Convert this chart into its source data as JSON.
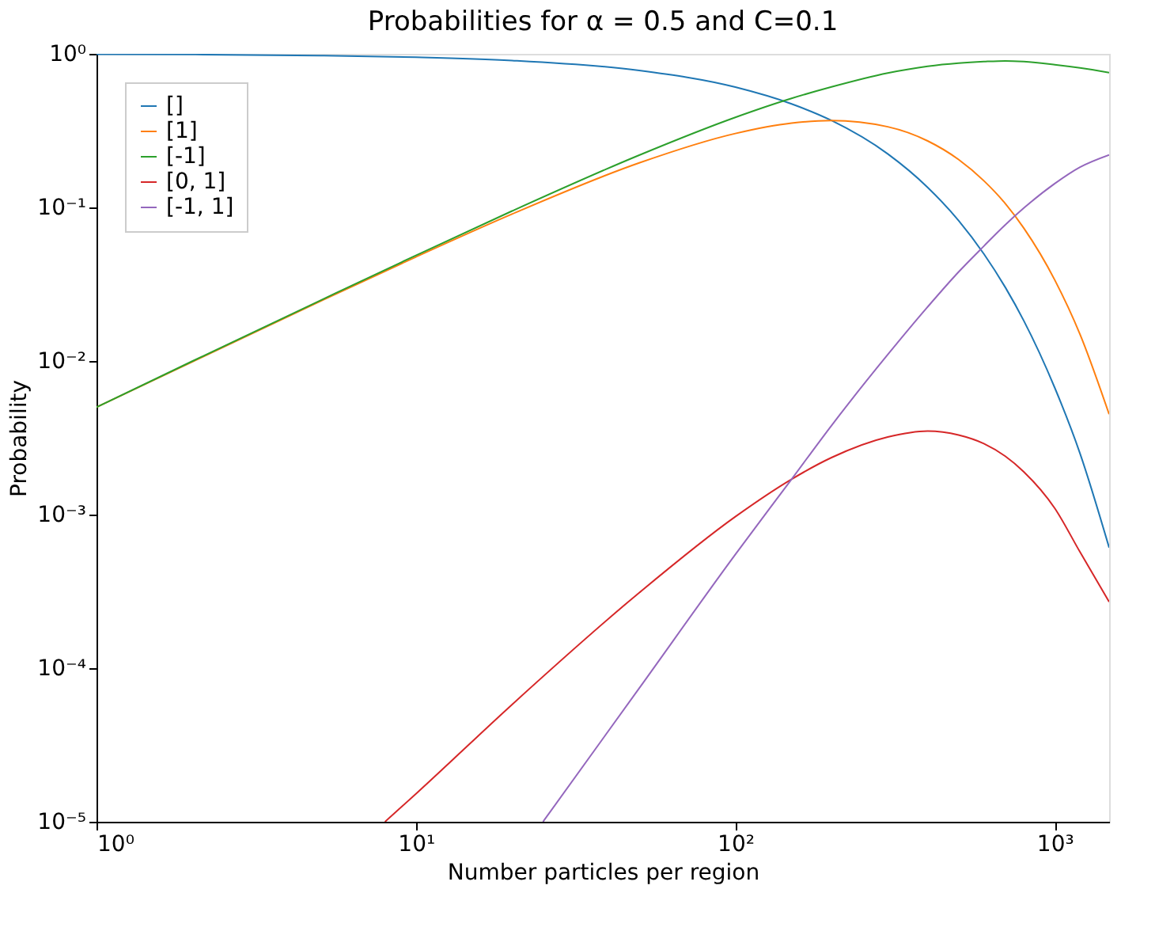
{
  "chart_data": {
    "type": "line",
    "title": "Probabilities for α = 0.5 and C=0.1",
    "xlabel": "Number particles per region",
    "ylabel": "Probability",
    "log": "xy",
    "xlim": [
      1,
      1480
    ],
    "ylim": [
      1e-05,
      1
    ],
    "xticks": [
      {
        "value": 1,
        "label": "10⁰"
      },
      {
        "value": 10,
        "label": "10¹"
      },
      {
        "value": 100,
        "label": "10²"
      },
      {
        "value": 1000,
        "label": "10³"
      }
    ],
    "yticks": [
      {
        "value": 1e-05,
        "label": "10⁻⁵"
      },
      {
        "value": 0.0001,
        "label": "10⁻⁴"
      },
      {
        "value": 0.001,
        "label": "10⁻³"
      },
      {
        "value": 0.01,
        "label": "10⁻²"
      },
      {
        "value": 0.1,
        "label": "10⁻¹"
      },
      {
        "value": 1,
        "label": "10⁰"
      }
    ],
    "grid": false,
    "legend": "top left",
    "marker": "none",
    "line_style": "solid",
    "series": [
      {
        "name": "[]",
        "color": "#1f77b4",
        "x": [
          1,
          2,
          5,
          10,
          20,
          50,
          100,
          150,
          200,
          300,
          400,
          500,
          600,
          700,
          800,
          1000,
          1200,
          1480
        ],
        "values": [
          0.995,
          0.99,
          0.975,
          0.951,
          0.905,
          0.779,
          0.607,
          0.472,
          0.368,
          0.223,
          0.135,
          0.0821,
          0.0498,
          0.0302,
          0.0183,
          0.0067,
          0.0025,
          0.00061
        ]
      },
      {
        "name": "[1]",
        "color": "#ff7f0e",
        "x": [
          1,
          2,
          5,
          10,
          20,
          50,
          100,
          150,
          200,
          300,
          400,
          500,
          600,
          700,
          800,
          1000,
          1200,
          1480
        ],
        "values": [
          0.005,
          0.0099,
          0.0244,
          0.0476,
          0.0905,
          0.195,
          0.303,
          0.354,
          0.368,
          0.335,
          0.271,
          0.205,
          0.149,
          0.106,
          0.0733,
          0.0337,
          0.0149,
          0.0045
        ]
      },
      {
        "name": "[-1]",
        "color": "#2ca02c",
        "x": [
          1,
          2,
          5,
          10,
          20,
          50,
          100,
          150,
          200,
          300,
          400,
          500,
          600,
          700,
          800,
          1000,
          1200,
          1480
        ],
        "values": [
          0.005,
          0.01,
          0.0247,
          0.0487,
          0.0948,
          0.219,
          0.386,
          0.513,
          0.609,
          0.75,
          0.83,
          0.87,
          0.89,
          0.9,
          0.89,
          0.85,
          0.81,
          0.755
        ]
      },
      {
        "name": "[0, 1]",
        "color": "#d62728",
        "x": [
          8,
          10,
          20,
          50,
          100,
          150,
          200,
          300,
          400,
          500,
          600,
          700,
          800,
          1000,
          1200,
          1480
        ],
        "values": [
          1e-05,
          1.52e-05,
          5.8e-05,
          0.00031,
          0.00097,
          0.0017,
          0.00235,
          0.0032,
          0.0035,
          0.0033,
          0.0029,
          0.0024,
          0.0019,
          0.0011,
          0.00057,
          0.00027
        ]
      },
      {
        "name": "[-1, 1]",
        "color": "#9467bd",
        "x": [
          25,
          50,
          100,
          150,
          200,
          300,
          400,
          500,
          600,
          700,
          800,
          1000,
          1200,
          1480
        ],
        "values": [
          1e-05,
          7.4e-05,
          0.00055,
          0.0017,
          0.0038,
          0.011,
          0.0225,
          0.038,
          0.056,
          0.077,
          0.099,
          0.143,
          0.183,
          0.22
        ]
      }
    ]
  }
}
